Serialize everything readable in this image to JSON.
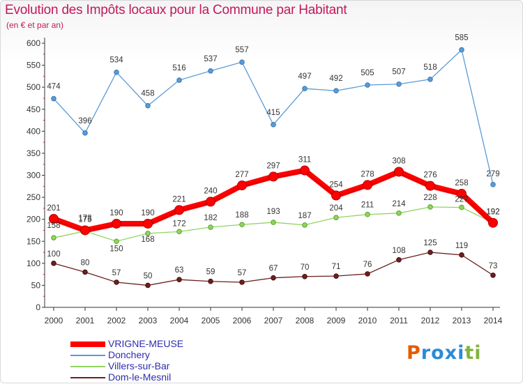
{
  "title": "Evolution des Impôts locaux pour la Commune par Habitant",
  "subtitle": "(en € et par an)",
  "logo": [
    "P",
    "r",
    "o",
    "x",
    "i",
    "t",
    "i"
  ],
  "logo_colors": [
    "#e65c00",
    "#2b8cd6",
    "#2b8cd6",
    "#2b8cd6",
    "#2b8cd6",
    "#82b43c",
    "#82b43c"
  ],
  "chart_data": {
    "type": "line",
    "title": "Evolution des Impôts locaux pour la Commune par Habitant",
    "subtitle": "(en € et par an)",
    "x": [
      "2000",
      "2001",
      "2002",
      "2003",
      "2004",
      "2005",
      "2006",
      "2007",
      "2008",
      "2009",
      "2010",
      "2011",
      "2012",
      "2013",
      "2014"
    ],
    "ylim": [
      0,
      600
    ],
    "yticks": [
      0,
      50,
      100,
      150,
      200,
      250,
      300,
      350,
      400,
      450,
      500,
      550,
      600
    ],
    "grid": false,
    "legend_position": "bottom-left",
    "series": [
      {
        "name": "VRIGNE-MEUSE",
        "color": "#ff0000",
        "values": [
          201,
          175,
          190,
          190,
          221,
          240,
          277,
          297,
          311,
          254,
          278,
          308,
          276,
          258,
          192
        ],
        "labels": [
          "201",
          "175",
          "190",
          "190",
          "221",
          "240",
          "277",
          "297",
          "311",
          "254",
          "278",
          "308",
          "276",
          "258",
          "192"
        ]
      },
      {
        "name": "Donchery",
        "color": "#5b9bd5",
        "values": [
          474,
          396,
          534,
          458,
          516,
          537,
          557,
          415,
          497,
          492,
          505,
          507,
          518,
          585,
          279
        ],
        "labels": [
          "474",
          "396",
          "534",
          "458",
          "516",
          "537",
          "557",
          "415",
          "497",
          "492",
          "505",
          "507",
          "518",
          "585",
          "279"
        ]
      },
      {
        "name": "Villers-sur-Bar",
        "color": "#90d460",
        "values": [
          158,
          173,
          150,
          168,
          172,
          182,
          188,
          193,
          187,
          204,
          211,
          214,
          228,
          227,
          192
        ],
        "labels": [
          "158",
          "173",
          "150",
          "168",
          "172",
          "182",
          "188",
          "193",
          "187",
          "204",
          "211",
          "214",
          "228",
          "227",
          "192"
        ]
      },
      {
        "name": "Dom-le-Mesnil",
        "color": "#6b1f1f",
        "values": [
          100,
          80,
          57,
          50,
          63,
          59,
          57,
          67,
          70,
          71,
          76,
          108,
          125,
          119,
          73
        ],
        "labels": [
          "100",
          "80",
          "57",
          "50",
          "63",
          "59",
          "57",
          "67",
          "70",
          "71",
          "76",
          "108",
          "125",
          "119",
          "73"
        ]
      }
    ]
  }
}
